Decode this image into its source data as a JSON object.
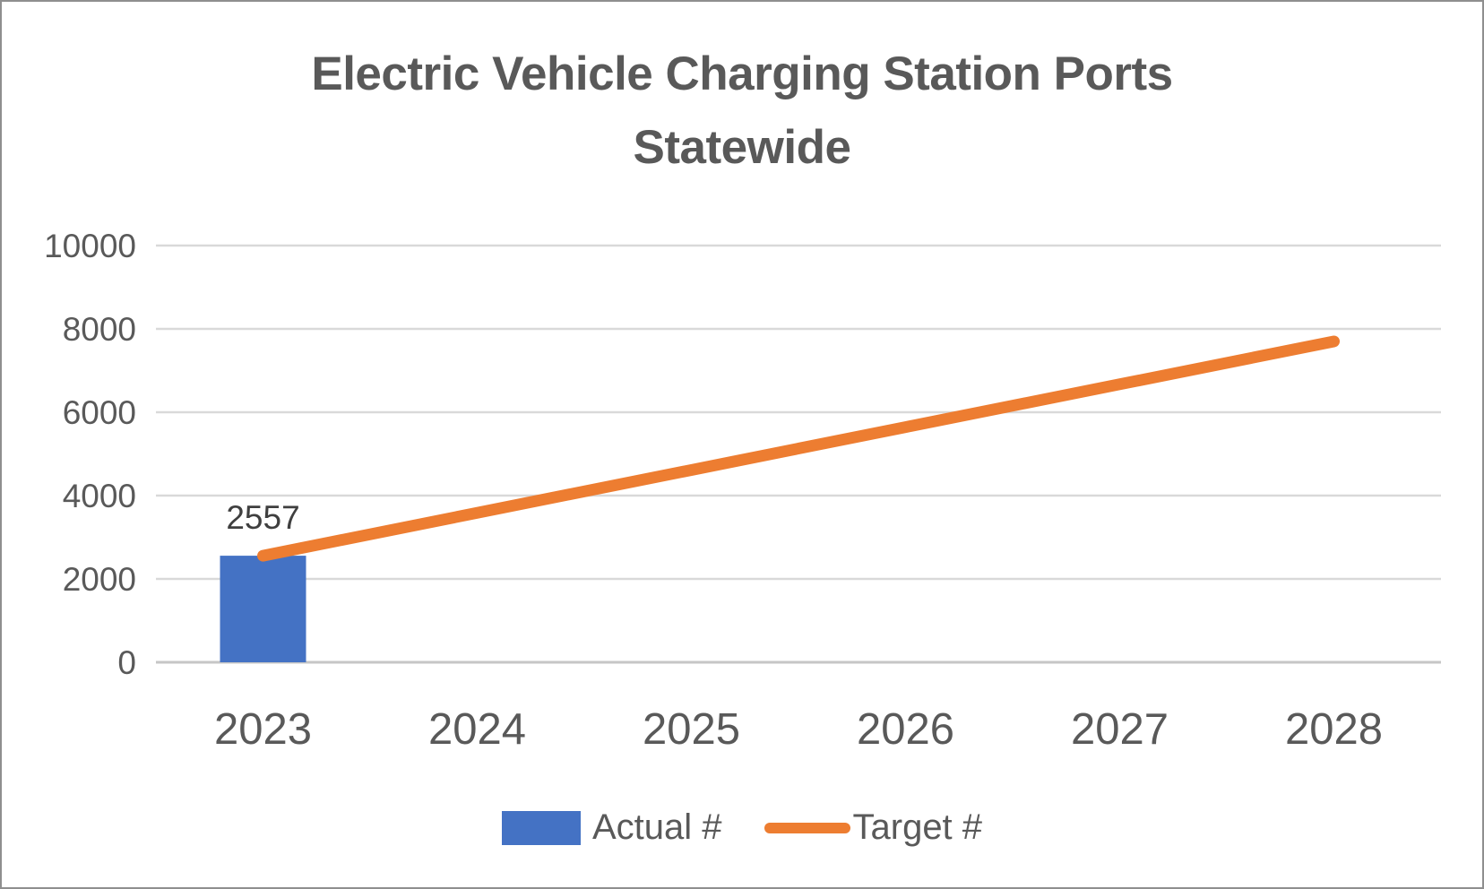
{
  "frame": {
    "background": "#FFFFFF",
    "border_color": "#8F8F8F"
  },
  "chart_data": {
    "type": "combo",
    "title": "Electric Vehicle Charging Station Ports Statewide",
    "title_lines": [
      "Electric Vehicle Charging Station Ports",
      "Statewide"
    ],
    "title_color": "#595959",
    "categories": [
      "2023",
      "2024",
      "2025",
      "2026",
      "2027",
      "2028"
    ],
    "series": [
      {
        "name": "Actual #",
        "type": "bar",
        "color": "#4472C4",
        "values": [
          2557,
          null,
          null,
          null,
          null,
          null
        ]
      },
      {
        "name": "Target #",
        "type": "line",
        "color": "#ED7D31",
        "values": [
          2557,
          3586,
          4614,
          5643,
          6671,
          7700
        ]
      }
    ],
    "xlabel": "",
    "ylabel": "",
    "ylim": [
      0,
      10000
    ],
    "y_ticks": [
      0,
      2000,
      4000,
      6000,
      8000,
      10000
    ],
    "grid": true,
    "gridline_color": "#D9D9D9",
    "axis_line_color": "#C6C6C6",
    "axis_text_color": "#595959",
    "data_label_color": "#3F3F3F",
    "legend_position": "bottom"
  }
}
